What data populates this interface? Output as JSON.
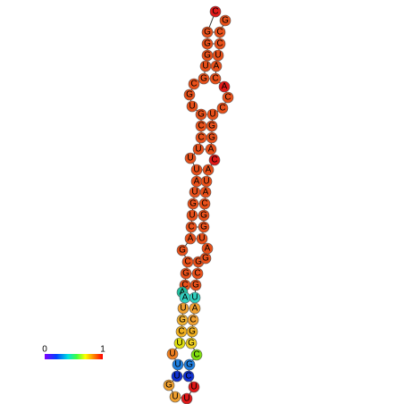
{
  "title": null,
  "nodes": [
    {
      "label": "C",
      "color": "#e01818"
    },
    {
      "label": "G",
      "color": "#e8501a"
    },
    {
      "label": "G",
      "color": "#e8501a"
    },
    {
      "label": "G",
      "color": "#e8501a"
    },
    {
      "label": "U",
      "color": "#e8501a"
    },
    {
      "label": "G",
      "color": "#e8501a"
    },
    {
      "label": "C",
      "color": "#e8501a"
    },
    {
      "label": "G",
      "color": "#e8501a"
    },
    {
      "label": "U",
      "color": "#e8501a"
    },
    {
      "label": "G",
      "color": "#e8501a"
    },
    {
      "label": "C",
      "color": "#e8501a"
    },
    {
      "label": "C",
      "color": "#e8501a"
    },
    {
      "label": "U",
      "color": "#e8501a"
    },
    {
      "label": "U",
      "color": "#e8501a"
    },
    {
      "label": "U",
      "color": "#e8501a"
    },
    {
      "label": "A",
      "color": "#e8501a"
    },
    {
      "label": "U",
      "color": "#e8501a"
    },
    {
      "label": "G",
      "color": "#e8501a"
    },
    {
      "label": "U",
      "color": "#e8501a"
    },
    {
      "label": "C",
      "color": "#e8501a"
    },
    {
      "label": "A",
      "color": "#e8501a"
    },
    {
      "label": "G",
      "color": "#e8501a"
    },
    {
      "label": "C",
      "color": "#e8501a"
    },
    {
      "label": "G",
      "color": "#e8501a"
    },
    {
      "label": "C",
      "color": "#e8501a"
    },
    {
      "label": "A",
      "color": "#20c0a0"
    },
    {
      "label": "A",
      "color": "#30d0c0"
    },
    {
      "label": "U",
      "color": "#f0a030"
    },
    {
      "label": "G",
      "color": "#f0b030"
    },
    {
      "label": "C",
      "color": "#f0b020"
    },
    {
      "label": "U",
      "color": "#e0e010"
    },
    {
      "label": "U",
      "color": "#f08020"
    },
    {
      "label": "U",
      "color": "#2080e0"
    },
    {
      "label": "U",
      "color": "#1030d0"
    },
    {
      "label": "G",
      "color": "#f0a030"
    },
    {
      "label": "U",
      "color": "#f0a030"
    },
    {
      "label": "U",
      "color": "#e01818"
    },
    {
      "label": "U",
      "color": "#e01818"
    },
    {
      "label": "C",
      "color": "#1030d0"
    },
    {
      "label": "G",
      "color": "#2080e0"
    },
    {
      "label": "C",
      "color": "#80e010"
    },
    {
      "label": "G",
      "color": "#f0d020"
    },
    {
      "label": "G",
      "color": "#f0b020"
    },
    {
      "label": "C",
      "color": "#f0a030"
    },
    {
      "label": "A",
      "color": "#f0a030"
    },
    {
      "label": "U",
      "color": "#30d0c0"
    },
    {
      "label": "G",
      "color": "#e8501a"
    },
    {
      "label": "C",
      "color": "#e8501a"
    },
    {
      "label": "G",
      "color": "#e8501a"
    },
    {
      "label": "G",
      "color": "#e8501a"
    },
    {
      "label": "A",
      "color": "#e8501a"
    },
    {
      "label": "U",
      "color": "#e8501a"
    },
    {
      "label": "G",
      "color": "#e8501a"
    },
    {
      "label": "G",
      "color": "#e8501a"
    },
    {
      "label": "C",
      "color": "#e8501a"
    },
    {
      "label": "A",
      "color": "#e8501a"
    },
    {
      "label": "U",
      "color": "#e8501a"
    },
    {
      "label": "A",
      "color": "#e8501a"
    },
    {
      "label": "C",
      "color": "#e01818"
    },
    {
      "label": "A",
      "color": "#e8501a"
    },
    {
      "label": "G",
      "color": "#e8501a"
    },
    {
      "label": "G",
      "color": "#e8501a"
    },
    {
      "label": "U",
      "color": "#e8501a"
    },
    {
      "label": "C",
      "color": "#e8501a"
    },
    {
      "label": "C",
      "color": "#e8501a"
    },
    {
      "label": "A",
      "color": "#e01818"
    },
    {
      "label": "C",
      "color": "#e8501a"
    },
    {
      "label": "A",
      "color": "#e8501a"
    },
    {
      "label": "U",
      "color": "#e8501a"
    },
    {
      "label": "C",
      "color": "#e8501a"
    },
    {
      "label": "C",
      "color": "#e8501a"
    },
    {
      "label": "G",
      "color": "#e8501a"
    }
  ],
  "colorbar": {
    "min_label": "0",
    "max_label": "1"
  }
}
